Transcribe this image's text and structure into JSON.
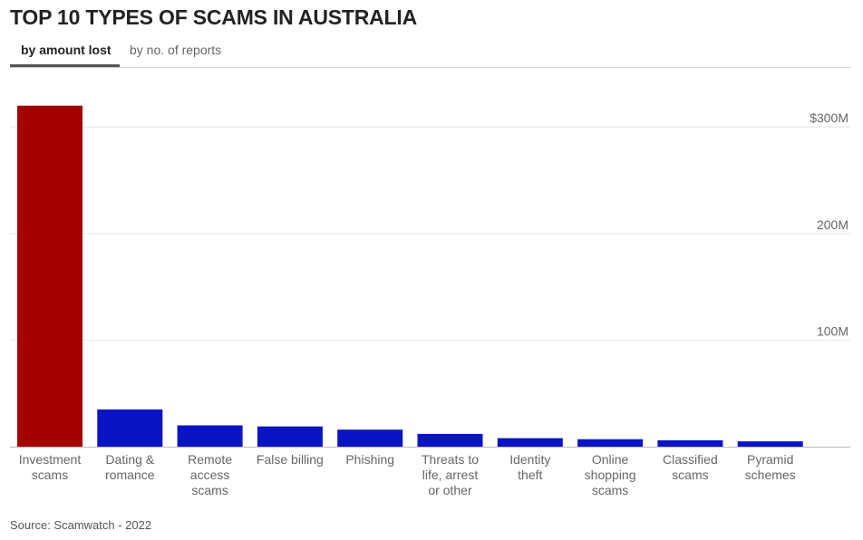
{
  "title": "TOP 10 TYPES OF SCAMS IN AUSTRALIA",
  "tabs": [
    {
      "label": "by amount lost",
      "active": true
    },
    {
      "label": "by no. of reports",
      "active": false
    }
  ],
  "source": "Source: Scamwatch - 2022",
  "colors": {
    "highlight": "#a30000",
    "bar": "#0a14c4",
    "grid": "#e6e6e6",
    "axis": "#bbbbbb"
  },
  "chart_data": {
    "type": "bar",
    "categories": [
      [
        "Investment",
        "scams"
      ],
      [
        "Dating &",
        "romance"
      ],
      [
        "Remote",
        "access",
        "scams"
      ],
      [
        "False billing"
      ],
      [
        "Phishing"
      ],
      [
        "Threats to",
        "life, arrest",
        "or other"
      ],
      [
        "Identity",
        "theft"
      ],
      [
        "Online",
        "shopping",
        "scams"
      ],
      [
        "Classified",
        "scams"
      ],
      [
        "Pyramid",
        "schemes"
      ]
    ],
    "values": [
      320,
      35,
      20,
      19,
      16,
      12,
      8,
      7,
      6,
      5
    ],
    "highlight_index": 0,
    "ylim": [
      0,
      320
    ],
    "yticks": [
      100,
      200,
      300
    ],
    "ytick_labels": [
      "100M",
      "200M",
      "$300M"
    ],
    "grid": true
  }
}
